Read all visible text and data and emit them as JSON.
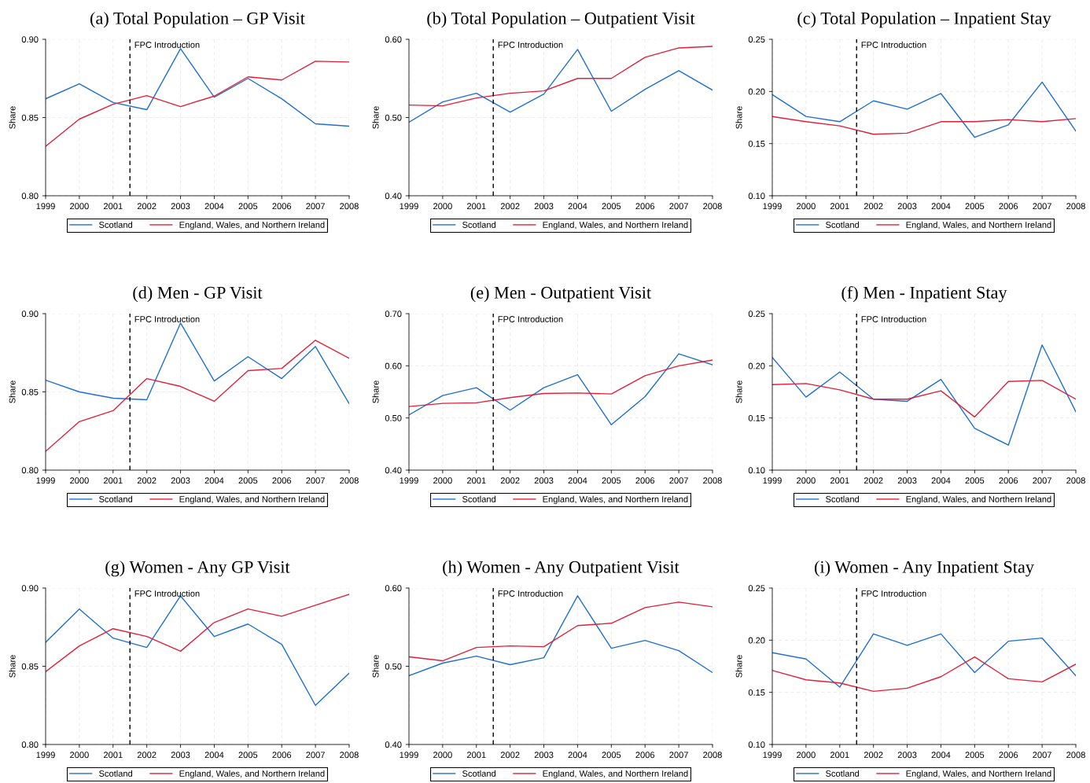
{
  "chart_data": [
    {
      "type": "line",
      "title": "(a) Total Population – GP Visit",
      "ylabel": "Share",
      "x": [
        1999,
        2000,
        2001,
        2002,
        2003,
        2004,
        2005,
        2006,
        2007,
        2008
      ],
      "xlim": [
        1999,
        2008
      ],
      "xticks": [
        1999,
        2000,
        2001,
        2002,
        2003,
        2004,
        2005,
        2006,
        2007,
        2008
      ],
      "ylim": [
        0.8,
        0.9
      ],
      "yticks": [
        {
          "value": 0.8,
          "label": "0.80"
        },
        0.85,
        {
          "value": 0.9,
          "label": "0.90"
        }
      ],
      "grid": true,
      "legend": "bottom",
      "ref_lines": [
        {
          "axis": "x",
          "value": 2001.5,
          "label": "FPC Introduction",
          "line_style": "dashed",
          "color": "#000000"
        }
      ],
      "series": [
        {
          "name": "Scotland",
          "color": "#1f6fd0",
          "values": [
            0.862,
            0.8715,
            0.8596,
            0.855,
            0.894,
            0.863,
            0.875,
            0.862,
            0.846,
            0.8445
          ]
        },
        {
          "name": "England, Wales, and Northern Ireland",
          "color": "#e0203a",
          "values": [
            0.8316,
            0.849,
            0.8585,
            0.864,
            0.857,
            0.8637,
            0.876,
            0.874,
            0.886,
            0.8855
          ]
        }
      ]
    },
    {
      "type": "line",
      "title": "(b) Total Population – Outpatient Visit",
      "ylabel": "Share",
      "x": [
        1999,
        2000,
        2001,
        2002,
        2003,
        2004,
        2005,
        2006,
        2007,
        2008
      ],
      "xlim": [
        1999,
        2008
      ],
      "xticks": [
        1999,
        2000,
        2001,
        2002,
        2003,
        2004,
        2005,
        2006,
        2007,
        2008
      ],
      "ylim": [
        0.4,
        0.6
      ],
      "yticks": [
        {
          "value": 0.4,
          "label": "0.40"
        },
        {
          "value": 0.5,
          "label": "0.50"
        },
        {
          "value": 0.6,
          "label": "0.60"
        }
      ],
      "grid": true,
      "legend": "bottom",
      "ref_lines": [
        {
          "axis": "x",
          "value": 2001.5,
          "label": "FPC Introduction",
          "line_style": "dashed",
          "color": "#000000"
        }
      ],
      "series": [
        {
          "name": "Scotland",
          "color": "#1f6fd0",
          "values": [
            0.494,
            0.52,
            0.531,
            0.507,
            0.53,
            0.587,
            0.508,
            0.536,
            0.56,
            0.535
          ]
        },
        {
          "name": "England, Wales, and Northern Ireland",
          "color": "#e0203a",
          "values": [
            0.516,
            0.515,
            0.525,
            0.531,
            0.534,
            0.55,
            0.55,
            0.577,
            0.589,
            0.591
          ]
        }
      ]
    },
    {
      "type": "line",
      "title": "(c) Total Population – Inpatient Stay",
      "ylabel": "Share",
      "x": [
        1999,
        2000,
        2001,
        2002,
        2003,
        2004,
        2005,
        2006,
        2007,
        2008
      ],
      "xlim": [
        1999,
        2008
      ],
      "xticks": [
        1999,
        2000,
        2001,
        2002,
        2003,
        2004,
        2005,
        2006,
        2007,
        2008
      ],
      "ylim": [
        0.1,
        0.25
      ],
      "yticks": [
        {
          "value": 0.1,
          "label": "0.10"
        },
        0.15,
        {
          "value": 0.2,
          "label": "0.20"
        },
        0.25
      ],
      "grid": true,
      "legend": "bottom",
      "ref_lines": [
        {
          "axis": "x",
          "value": 2001.5,
          "label": "FPC Introduction",
          "line_style": "dashed",
          "color": "#000000"
        }
      ],
      "series": [
        {
          "name": "Scotland",
          "color": "#1f6fd0",
          "values": [
            0.197,
            0.176,
            0.171,
            0.191,
            0.183,
            0.198,
            0.156,
            0.168,
            0.209,
            0.162
          ]
        },
        {
          "name": "England, Wales, and Northern Ireland",
          "color": "#e0203a",
          "values": [
            0.176,
            0.171,
            0.167,
            0.159,
            0.16,
            0.171,
            0.171,
            0.173,
            0.171,
            0.174
          ]
        }
      ]
    },
    {
      "type": "line",
      "title": "(d) Men - GP Visit",
      "ylabel": "Share",
      "x": [
        1999,
        2000,
        2001,
        2002,
        2003,
        2004,
        2005,
        2006,
        2007,
        2008
      ],
      "xlim": [
        1999,
        2008
      ],
      "xticks": [
        1999,
        2000,
        2001,
        2002,
        2003,
        2004,
        2005,
        2006,
        2007,
        2008
      ],
      "ylim": [
        0.8,
        0.9
      ],
      "yticks": [
        {
          "value": 0.8,
          "label": "0.80"
        },
        0.85,
        {
          "value": 0.9,
          "label": "0.90"
        }
      ],
      "grid": true,
      "legend": "bottom",
      "ref_lines": [
        {
          "axis": "x",
          "value": 2001.5,
          "label": "FPC Introduction",
          "line_style": "dashed",
          "color": "#000000"
        }
      ],
      "series": [
        {
          "name": "Scotland",
          "color": "#1f6fd0",
          "values": [
            0.8575,
            0.85,
            0.846,
            0.845,
            0.894,
            0.857,
            0.8725,
            0.8585,
            0.879,
            0.8425
          ]
        },
        {
          "name": "England, Wales, and Northern Ireland",
          "color": "#e0203a",
          "values": [
            0.812,
            0.831,
            0.838,
            0.8585,
            0.8535,
            0.844,
            0.8636,
            0.865,
            0.883,
            0.8715
          ]
        }
      ]
    },
    {
      "type": "line",
      "title": "(e) Men - Outpatient Visit",
      "ylabel": "Share",
      "x": [
        1999,
        2000,
        2001,
        2002,
        2003,
        2004,
        2005,
        2006,
        2007,
        2008
      ],
      "xlim": [
        1999,
        2008
      ],
      "xticks": [
        1999,
        2000,
        2001,
        2002,
        2003,
        2004,
        2005,
        2006,
        2007,
        2008
      ],
      "ylim": [
        0.4,
        0.7
      ],
      "yticks": [
        {
          "value": 0.4,
          "label": "0.40"
        },
        {
          "value": 0.5,
          "label": "0.50"
        },
        {
          "value": 0.6,
          "label": "0.60"
        },
        {
          "value": 0.7,
          "label": "0.70"
        }
      ],
      "grid": true,
      "legend": "bottom",
      "ref_lines": [
        {
          "axis": "x",
          "value": 2001.5,
          "label": "FPC Introduction",
          "line_style": "dashed",
          "color": "#000000"
        }
      ],
      "series": [
        {
          "name": "Scotland",
          "color": "#1f6fd0",
          "values": [
            0.506,
            0.543,
            0.558,
            0.515,
            0.558,
            0.583,
            0.487,
            0.541,
            0.623,
            0.602
          ]
        },
        {
          "name": "England, Wales, and Northern Ireland",
          "color": "#e0203a",
          "values": [
            0.522,
            0.528,
            0.529,
            0.539,
            0.547,
            0.548,
            0.546,
            0.581,
            0.6,
            0.611
          ]
        }
      ]
    },
    {
      "type": "line",
      "title": "(f) Men - Inpatient Stay",
      "ylabel": "Share",
      "x": [
        1999,
        2000,
        2001,
        2002,
        2003,
        2004,
        2005,
        2006,
        2007,
        2008
      ],
      "xlim": [
        1999,
        2008
      ],
      "xticks": [
        1999,
        2000,
        2001,
        2002,
        2003,
        2004,
        2005,
        2006,
        2007,
        2008
      ],
      "ylim": [
        0.1,
        0.25
      ],
      "yticks": [
        {
          "value": 0.1,
          "label": "0.10"
        },
        0.15,
        {
          "value": 0.2,
          "label": "0.20"
        },
        0.25
      ],
      "grid": true,
      "legend": "bottom",
      "ref_lines": [
        {
          "axis": "x",
          "value": 2001.5,
          "label": "FPC Introduction",
          "line_style": "dashed",
          "color": "#000000"
        }
      ],
      "series": [
        {
          "name": "Scotland",
          "color": "#1f6fd0",
          "values": [
            0.208,
            0.17,
            0.194,
            0.168,
            0.166,
            0.187,
            0.14,
            0.124,
            0.22,
            0.156
          ]
        },
        {
          "name": "England, Wales, and Northern Ireland",
          "color": "#e0203a",
          "values": [
            0.182,
            0.183,
            0.177,
            0.168,
            0.168,
            0.176,
            0.151,
            0.185,
            0.186,
            0.168
          ]
        }
      ]
    },
    {
      "type": "line",
      "title": "(g) Women - Any GP Visit",
      "ylabel": "Share",
      "x": [
        1999,
        2000,
        2001,
        2002,
        2003,
        2004,
        2005,
        2006,
        2007,
        2008
      ],
      "xlim": [
        1999,
        2008
      ],
      "xticks": [
        1999,
        2000,
        2001,
        2002,
        2003,
        2004,
        2005,
        2006,
        2007,
        2008
      ],
      "ylim": [
        0.8,
        0.9
      ],
      "yticks": [
        {
          "value": 0.8,
          "label": "0.80"
        },
        0.85,
        {
          "value": 0.9,
          "label": "0.90"
        }
      ],
      "grid": true,
      "legend": "bottom",
      "ref_lines": [
        {
          "axis": "x",
          "value": 2001.5,
          "label": "FPC Introduction",
          "line_style": "dashed",
          "color": "#000000"
        }
      ],
      "series": [
        {
          "name": "Scotland",
          "color": "#1f6fd0",
          "values": [
            0.8653,
            0.8866,
            0.868,
            0.862,
            0.895,
            0.869,
            0.877,
            0.864,
            0.825,
            0.8456
          ]
        },
        {
          "name": "England, Wales, and Northern Ireland",
          "color": "#e0203a",
          "values": [
            0.8466,
            0.863,
            0.874,
            0.869,
            0.8596,
            0.878,
            0.8866,
            0.882,
            0.889,
            0.896
          ]
        }
      ]
    },
    {
      "type": "line",
      "title": "(h) Women - Any Outpatient Visit",
      "ylabel": "Share",
      "x": [
        1999,
        2000,
        2001,
        2002,
        2003,
        2004,
        2005,
        2006,
        2007,
        2008
      ],
      "xlim": [
        1999,
        2008
      ],
      "xticks": [
        1999,
        2000,
        2001,
        2002,
        2003,
        2004,
        2005,
        2006,
        2007,
        2008
      ],
      "ylim": [
        0.4,
        0.6
      ],
      "yticks": [
        {
          "value": 0.4,
          "label": "0.40"
        },
        {
          "value": 0.5,
          "label": "0.50"
        },
        {
          "value": 0.6,
          "label": "0.60"
        }
      ],
      "grid": true,
      "legend": "bottom",
      "ref_lines": [
        {
          "axis": "x",
          "value": 2001.5,
          "label": "FPC Introduction",
          "line_style": "dashed",
          "color": "#000000"
        }
      ],
      "series": [
        {
          "name": "Scotland",
          "color": "#1f6fd0",
          "values": [
            0.488,
            0.504,
            0.513,
            0.502,
            0.511,
            0.59,
            0.523,
            0.533,
            0.52,
            0.492
          ]
        },
        {
          "name": "England, Wales, and Northern Ireland",
          "color": "#e0203a",
          "values": [
            0.512,
            0.507,
            0.524,
            0.526,
            0.525,
            0.552,
            0.555,
            0.575,
            0.582,
            0.576
          ]
        }
      ]
    },
    {
      "type": "line",
      "title": "(i) Women - Any Inpatient Stay",
      "ylabel": "Share",
      "x": [
        1999,
        2000,
        2001,
        2002,
        2003,
        2004,
        2005,
        2006,
        2007,
        2008
      ],
      "xlim": [
        1999,
        2008
      ],
      "xticks": [
        1999,
        2000,
        2001,
        2002,
        2003,
        2004,
        2005,
        2006,
        2007,
        2008
      ],
      "ylim": [
        0.1,
        0.25
      ],
      "yticks": [
        {
          "value": 0.1,
          "label": "0.10"
        },
        0.15,
        {
          "value": 0.2,
          "label": "0.20"
        },
        0.25
      ],
      "grid": true,
      "legend": "bottom",
      "ref_lines": [
        {
          "axis": "x",
          "value": 2001.5,
          "label": "FPC Introduction",
          "line_style": "dashed",
          "color": "#000000"
        }
      ],
      "series": [
        {
          "name": "Scotland",
          "color": "#1f6fd0",
          "values": [
            0.188,
            0.182,
            0.155,
            0.206,
            0.195,
            0.206,
            0.169,
            0.199,
            0.202,
            0.166
          ]
        },
        {
          "name": "England, Wales, and Northern Ireland",
          "color": "#e0203a",
          "values": [
            0.171,
            0.162,
            0.159,
            0.151,
            0.154,
            0.165,
            0.184,
            0.163,
            0.16,
            0.177
          ]
        }
      ]
    }
  ]
}
